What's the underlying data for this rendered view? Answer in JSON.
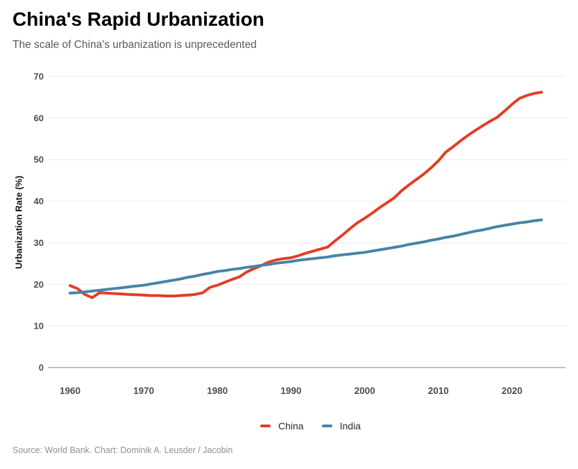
{
  "header": {
    "title": "China's Rapid Urbanization",
    "subtitle": "The scale of China's urbanization is unprecedented"
  },
  "footer": {
    "source": "Source: World Bank. Chart: Dominik A. Leusder / Jacobin"
  },
  "chart_data": {
    "type": "line",
    "title": "China's Rapid Urbanization",
    "subtitle": "The scale of China's urbanization is unprecedented",
    "xlabel": "",
    "ylabel": "Urbanization Rate (%)",
    "ylim": [
      0,
      70
    ],
    "xlim": [
      1960,
      2024
    ],
    "yticks": [
      0,
      10,
      20,
      30,
      40,
      50,
      60,
      70
    ],
    "xticks": [
      1960,
      1970,
      1980,
      1990,
      2000,
      2010,
      2020
    ],
    "grid": "horizontal-only",
    "legend_position": "bottom-center",
    "background": "#ffffff",
    "gridline_color": "#ebebeb",
    "baseline_color": "#ababab",
    "years": [
      1960,
      1961,
      1962,
      1963,
      1964,
      1965,
      1966,
      1967,
      1968,
      1969,
      1970,
      1971,
      1972,
      1973,
      1974,
      1975,
      1976,
      1977,
      1978,
      1979,
      1980,
      1981,
      1982,
      1983,
      1984,
      1985,
      1986,
      1987,
      1988,
      1989,
      1990,
      1991,
      1992,
      1993,
      1994,
      1995,
      1996,
      1997,
      1998,
      1999,
      2000,
      2001,
      2002,
      2003,
      2004,
      2005,
      2006,
      2007,
      2008,
      2009,
      2010,
      2011,
      2012,
      2013,
      2014,
      2015,
      2016,
      2017,
      2018,
      2019,
      2020,
      2021,
      2022,
      2023,
      2024
    ],
    "series": [
      {
        "name": "China",
        "color": "#e23e25",
        "values": [
          19.7,
          19.0,
          17.6,
          16.8,
          18.0,
          17.9,
          17.8,
          17.7,
          17.6,
          17.5,
          17.4,
          17.3,
          17.3,
          17.2,
          17.2,
          17.3,
          17.4,
          17.6,
          18.0,
          19.3,
          19.8,
          20.5,
          21.2,
          21.8,
          23.0,
          23.8,
          24.6,
          25.4,
          25.9,
          26.2,
          26.4,
          26.9,
          27.5,
          28.0,
          28.5,
          29.0,
          30.5,
          31.9,
          33.4,
          34.8,
          35.9,
          37.1,
          38.4,
          39.6,
          40.8,
          42.5,
          43.9,
          45.2,
          46.5,
          48.0,
          49.7,
          51.8,
          53.1,
          54.5,
          55.8,
          57.0,
          58.1,
          59.2,
          60.2,
          61.7,
          63.3,
          64.7,
          65.4,
          65.9,
          66.2
        ]
      },
      {
        "name": "India",
        "color": "#4784a6",
        "values": [
          17.9,
          18.0,
          18.2,
          18.4,
          18.6,
          18.8,
          19.0,
          19.2,
          19.4,
          19.6,
          19.8,
          20.1,
          20.4,
          20.7,
          21.0,
          21.3,
          21.7,
          22.0,
          22.4,
          22.7,
          23.1,
          23.3,
          23.6,
          23.8,
          24.1,
          24.3,
          24.6,
          24.8,
          25.1,
          25.3,
          25.5,
          25.8,
          26.0,
          26.2,
          26.4,
          26.6,
          26.9,
          27.1,
          27.3,
          27.5,
          27.7,
          28.0,
          28.3,
          28.6,
          28.9,
          29.2,
          29.6,
          29.9,
          30.2,
          30.6,
          30.9,
          31.3,
          31.6,
          32.0,
          32.4,
          32.8,
          33.1,
          33.5,
          33.9,
          34.2,
          34.5,
          34.8,
          35.0,
          35.3,
          35.5
        ]
      }
    ]
  }
}
